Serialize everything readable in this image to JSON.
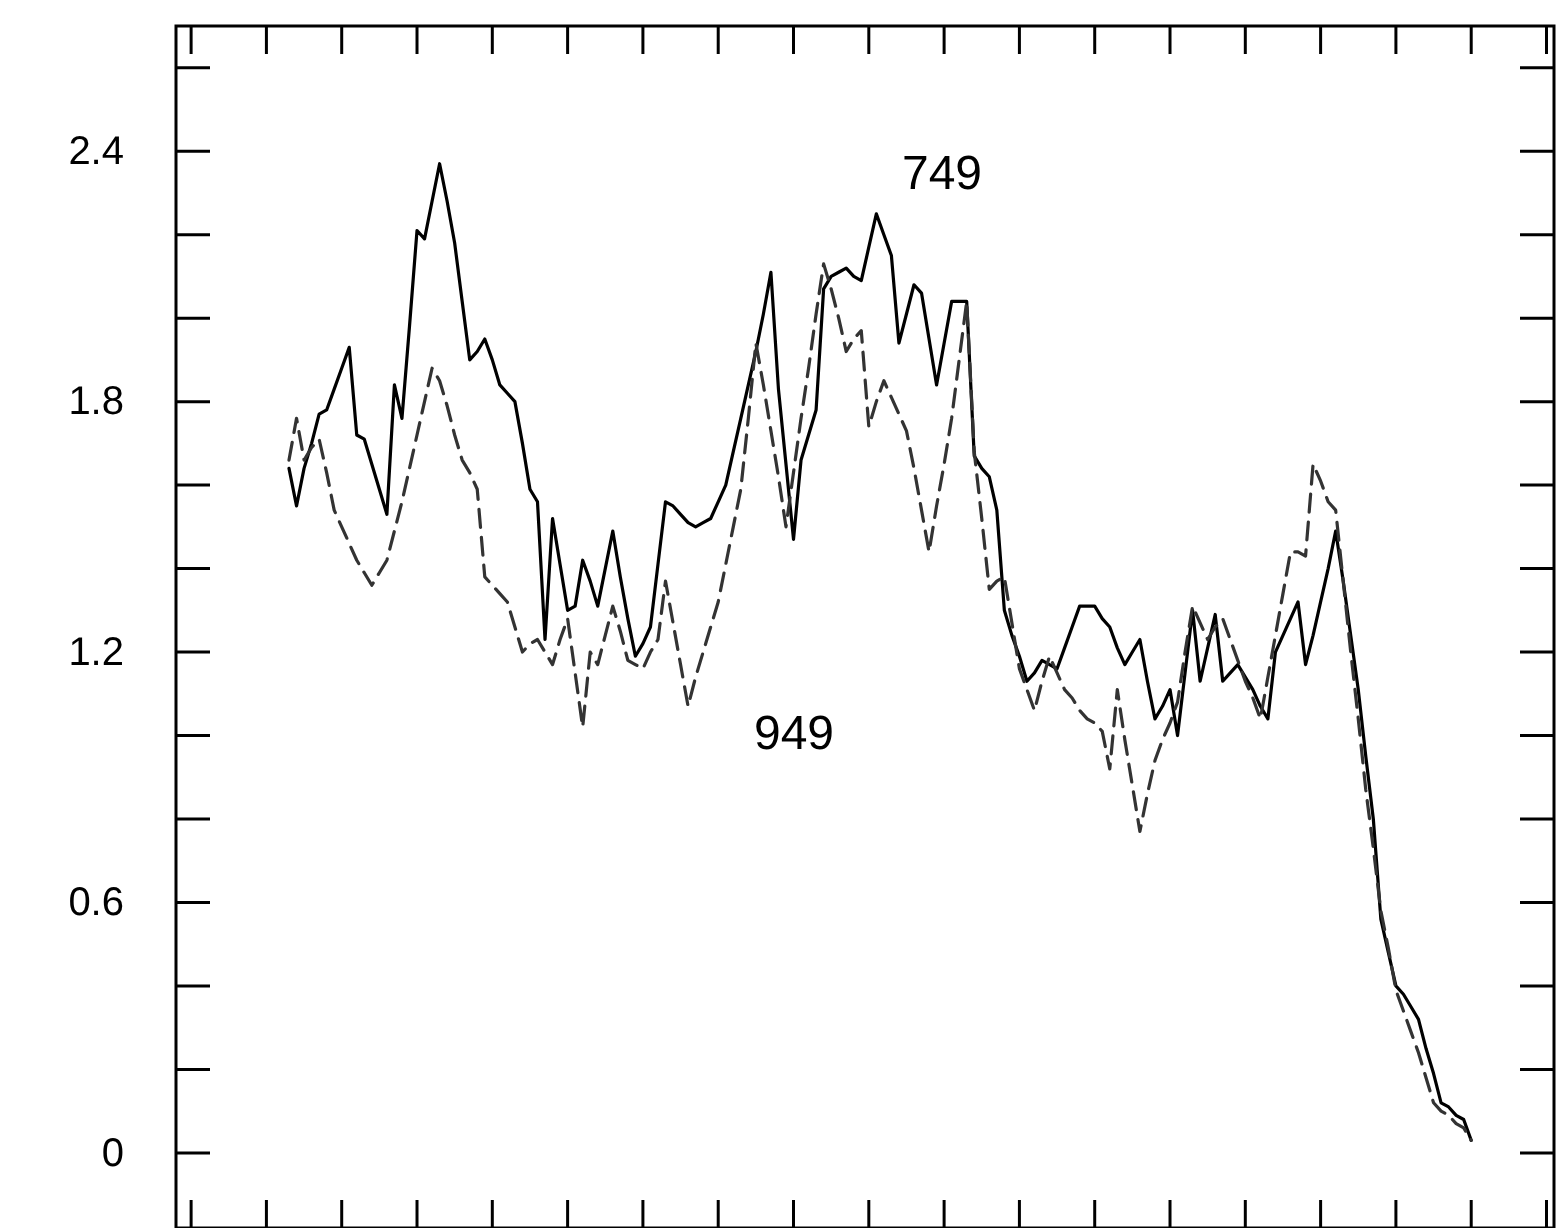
{
  "chart_data": {
    "type": "line",
    "ylim": [
      -0.18,
      2.7
    ],
    "categories": [
      null,
      null,
      null,
      null,
      null,
      null,
      null,
      null,
      null,
      null,
      null,
      null,
      null,
      null,
      null,
      null,
      null,
      null,
      null,
      null,
      null,
      null,
      null,
      null,
      null,
      null,
      null,
      null,
      null,
      null,
      null,
      null,
      null,
      null,
      null,
      null,
      null,
      null,
      null,
      null,
      null,
      null,
      null,
      null,
      null,
      null,
      null,
      null,
      null,
      null,
      null,
      null,
      null,
      null,
      null,
      null,
      null,
      null,
      null,
      null,
      null,
      null,
      null,
      null,
      null,
      null,
      null,
      null,
      null,
      null,
      null,
      null,
      null,
      null,
      null,
      null,
      null,
      null,
      null,
      null,
      null,
      null,
      null,
      null,
      null,
      null,
      null,
      null,
      null,
      null,
      null,
      null,
      null,
      null,
      null,
      null,
      null,
      null,
      null,
      null,
      null,
      null,
      null,
      null,
      null,
      null,
      null,
      null,
      null,
      null,
      null,
      null,
      null,
      null,
      null,
      null,
      null,
      null,
      null,
      null,
      null,
      null,
      null,
      null,
      null,
      null,
      null,
      null,
      null,
      null,
      null,
      null,
      null,
      null,
      null,
      null,
      null,
      null,
      null,
      null,
      null,
      null,
      null,
      null,
      null,
      null,
      null,
      null,
      null,
      null,
      null,
      null,
      null,
      null,
      null,
      null,
      null,
      null
    ],
    "yticks": [
      0,
      0.6,
      1.2,
      1.8,
      2.4
    ],
    "grid": false,
    "marker": "none",
    "series": [
      {
        "name": "749",
        "color": "#000000",
        "line_style": "solid",
        "values": [
          1.64,
          1.55,
          1.64,
          1.7,
          1.77,
          1.78,
          1.83,
          1.88,
          1.93,
          1.72,
          1.71,
          1.65,
          1.59,
          1.53,
          1.84,
          1.76,
          1.98,
          2.21,
          2.19,
          2.28,
          2.37,
          2.28,
          2.18,
          2.04,
          1.9,
          1.92,
          1.95,
          1.9,
          1.84,
          1.82,
          1.8,
          1.7,
          1.59,
          1.56,
          1.23,
          1.52,
          1.41,
          1.3,
          1.31,
          1.42,
          1.37,
          1.31,
          1.4,
          1.49,
          1.38,
          1.28,
          1.19,
          1.22,
          1.26,
          1.41,
          1.56,
          1.55,
          1.53,
          1.51,
          1.5,
          1.51,
          1.52,
          1.56,
          1.6,
          1.68,
          1.76,
          1.84,
          1.92,
          2.01,
          2.11,
          1.83,
          1.65,
          1.47,
          1.66,
          1.72,
          1.78,
          2.07,
          2.1,
          2.11,
          2.12,
          2.1,
          2.09,
          2.17,
          2.25,
          2.2,
          2.15,
          1.94,
          2.01,
          2.08,
          2.06,
          1.95,
          1.84,
          1.94,
          2.04,
          2.04,
          2.04,
          1.67,
          1.64,
          1.62,
          1.54,
          1.3,
          1.24,
          1.19,
          1.13,
          1.15,
          1.18,
          1.17,
          1.16,
          1.21,
          1.26,
          1.31,
          1.31,
          1.31,
          1.28,
          1.26,
          1.21,
          1.17,
          1.2,
          1.23,
          1.13,
          1.04,
          1.07,
          1.11,
          1.0,
          1.15,
          1.3,
          1.13,
          1.21,
          1.29,
          1.13,
          1.15,
          1.17,
          1.14,
          1.11,
          1.07,
          1.04,
          1.2,
          1.24,
          1.28,
          1.32,
          1.17,
          1.24,
          1.32,
          1.4,
          1.49,
          1.37,
          1.24,
          1.11,
          0.95,
          0.8,
          0.56,
          0.48,
          0.4,
          0.38,
          0.35,
          0.32,
          0.25,
          0.19,
          0.12,
          0.11,
          0.09,
          0.08,
          0.03
        ]
      },
      {
        "name": "949",
        "color": "#333333",
        "line_style": "dashed",
        "values": [
          1.66,
          1.76,
          1.66,
          1.69,
          1.71,
          1.63,
          1.54,
          1.5,
          1.46,
          1.42,
          1.39,
          1.36,
          1.39,
          1.42,
          1.49,
          1.56,
          1.64,
          1.72,
          1.8,
          1.88,
          1.85,
          1.79,
          1.72,
          1.66,
          1.63,
          1.59,
          1.38,
          1.36,
          1.34,
          1.32,
          1.26,
          1.2,
          1.22,
          1.23,
          1.2,
          1.17,
          1.23,
          1.28,
          1.15,
          1.02,
          1.2,
          1.17,
          1.24,
          1.31,
          1.25,
          1.18,
          1.17,
          1.16,
          1.2,
          1.23,
          1.37,
          1.27,
          1.17,
          1.07,
          1.14,
          1.2,
          1.26,
          1.32,
          1.41,
          1.5,
          1.59,
          1.76,
          1.94,
          1.84,
          1.73,
          1.62,
          1.5,
          1.63,
          1.76,
          1.88,
          2.01,
          2.13,
          2.07,
          2.0,
          1.92,
          1.95,
          1.97,
          1.74,
          1.8,
          1.85,
          1.81,
          1.77,
          1.73,
          1.64,
          1.54,
          1.44,
          1.55,
          1.65,
          1.76,
          1.9,
          2.04,
          1.68,
          1.52,
          1.35,
          1.37,
          1.38,
          1.27,
          1.16,
          1.11,
          1.06,
          1.13,
          1.19,
          1.15,
          1.11,
          1.09,
          1.06,
          1.04,
          1.03,
          1.01,
          0.92,
          1.11,
          0.99,
          0.88,
          0.77,
          0.86,
          0.94,
          0.99,
          1.03,
          1.08,
          1.2,
          1.31,
          1.27,
          1.23,
          1.26,
          1.28,
          1.23,
          1.18,
          1.13,
          1.09,
          1.04,
          1.14,
          1.24,
          1.34,
          1.44,
          1.44,
          1.43,
          1.65,
          1.61,
          1.56,
          1.54,
          1.37,
          1.2,
          1.04,
          0.87,
          0.73,
          0.58,
          0.49,
          0.39,
          0.34,
          0.29,
          0.24,
          0.18,
          0.12,
          0.1,
          0.09,
          0.07,
          0.06,
          0.03
        ]
      }
    ]
  }
}
